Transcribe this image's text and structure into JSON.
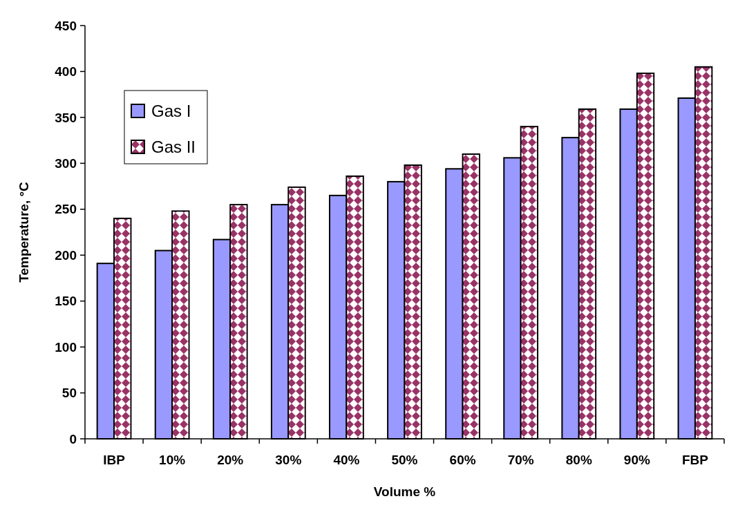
{
  "chart_data": {
    "type": "bar",
    "xlabel": "Volume %",
    "ylabel": "Temperature, °C",
    "categories": [
      "IBP",
      "10%",
      "20%",
      "30%",
      "40%",
      "50%",
      "60%",
      "70%",
      "80%",
      "90%",
      "FBP"
    ],
    "series": [
      {
        "name": "Gas I",
        "color": "#9999ff",
        "values": [
          191,
          205,
          217,
          255,
          265,
          280,
          294,
          306,
          328,
          359,
          371
        ]
      },
      {
        "name": "Gas II",
        "color": "#993366",
        "values": [
          240,
          248,
          255,
          274,
          286,
          298,
          310,
          340,
          359,
          398,
          405
        ]
      }
    ],
    "ylim": [
      0,
      450
    ],
    "yticks": [
      0,
      50,
      100,
      150,
      200,
      250,
      300,
      350,
      400,
      450
    ],
    "grid": false,
    "legend": "top left"
  }
}
